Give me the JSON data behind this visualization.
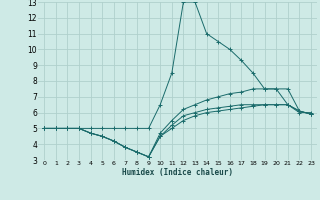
{
  "xlabel": "Humidex (Indice chaleur)",
  "bg_color": "#ceeae6",
  "grid_color": "#b0d0cc",
  "line_color": "#1a6b6b",
  "xlim": [
    -0.5,
    23.5
  ],
  "ylim": [
    3,
    13
  ],
  "xticks": [
    0,
    1,
    2,
    3,
    4,
    5,
    6,
    7,
    8,
    9,
    10,
    11,
    12,
    13,
    14,
    15,
    16,
    17,
    18,
    19,
    20,
    21,
    22,
    23
  ],
  "yticks": [
    3,
    4,
    5,
    6,
    7,
    8,
    9,
    10,
    11,
    12,
    13
  ],
  "series": [
    {
      "x": [
        0,
        1,
        2,
        3,
        4,
        5,
        6,
        7,
        8,
        9,
        10,
        11,
        12,
        13,
        14,
        15,
        16,
        17,
        18,
        19,
        20,
        21,
        22,
        23
      ],
      "y": [
        5,
        5,
        5,
        5,
        5,
        5,
        5,
        5,
        5,
        5,
        6.5,
        8.5,
        13,
        13,
        11,
        10.5,
        10,
        9.3,
        8.5,
        7.5,
        7.5,
        6.5,
        6,
        6
      ]
    },
    {
      "x": [
        0,
        1,
        2,
        3,
        4,
        5,
        6,
        7,
        8,
        9,
        10,
        11,
        12,
        13,
        14,
        15,
        16,
        17,
        18,
        19,
        20,
        21,
        22,
        23
      ],
      "y": [
        5,
        5,
        5,
        5,
        4.7,
        4.5,
        4.2,
        3.8,
        3.5,
        3.2,
        4.7,
        5.5,
        6.2,
        6.5,
        6.8,
        7.0,
        7.2,
        7.3,
        7.5,
        7.5,
        7.5,
        7.5,
        6.1,
        5.9
      ]
    },
    {
      "x": [
        0,
        1,
        2,
        3,
        4,
        5,
        6,
        7,
        8,
        9,
        10,
        11,
        12,
        13,
        14,
        15,
        16,
        17,
        18,
        19,
        20,
        21,
        22,
        23
      ],
      "y": [
        5,
        5,
        5,
        5,
        4.7,
        4.5,
        4.2,
        3.8,
        3.5,
        3.2,
        4.5,
        5.2,
        5.8,
        6.0,
        6.2,
        6.3,
        6.4,
        6.5,
        6.5,
        6.5,
        6.5,
        6.5,
        6.1,
        5.9
      ]
    },
    {
      "x": [
        0,
        1,
        2,
        3,
        4,
        5,
        6,
        7,
        8,
        9,
        10,
        11,
        12,
        13,
        14,
        15,
        16,
        17,
        18,
        19,
        20,
        21,
        22,
        23
      ],
      "y": [
        5,
        5,
        5,
        5,
        4.7,
        4.5,
        4.2,
        3.8,
        3.5,
        3.2,
        4.5,
        5.0,
        5.5,
        5.8,
        6.0,
        6.1,
        6.2,
        6.3,
        6.4,
        6.5,
        6.5,
        6.5,
        6.1,
        5.9
      ]
    }
  ]
}
